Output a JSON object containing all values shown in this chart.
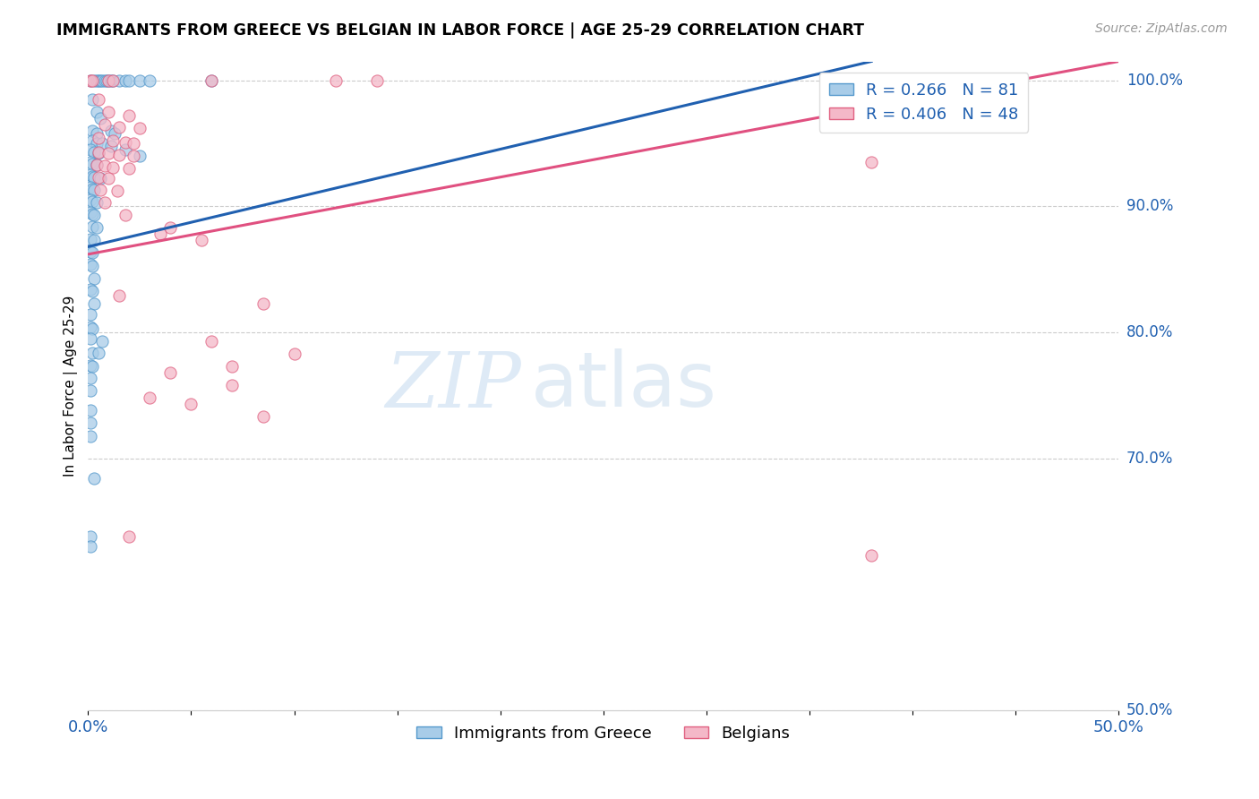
{
  "title": "IMMIGRANTS FROM GREECE VS BELGIAN IN LABOR FORCE | AGE 25-29 CORRELATION CHART",
  "source": "Source: ZipAtlas.com",
  "ylabel": "In Labor Force | Age 25-29",
  "ylabel_right_ticks": [
    "100.0%",
    "90.0%",
    "80.0%",
    "70.0%",
    "50.0%"
  ],
  "ylabel_right_vals": [
    1.0,
    0.9,
    0.8,
    0.7,
    0.5
  ],
  "xmin": 0.0,
  "xmax": 0.5,
  "ymin": 0.5,
  "ymax": 1.015,
  "legend_blue": "R = 0.266   N = 81",
  "legend_pink": "R = 0.406   N = 48",
  "legend_label_blue": "Immigrants from Greece",
  "legend_label_pink": "Belgians",
  "blue_color": "#a8cce8",
  "pink_color": "#f4b8c8",
  "blue_edge_color": "#5599cc",
  "pink_edge_color": "#e06080",
  "blue_line_color": "#2060b0",
  "pink_line_color": "#e05080",
  "watermark_zip": "ZIP",
  "watermark_atlas": "atlas",
  "blue_line": [
    [
      0.0,
      0.868
    ],
    [
      0.38,
      1.015
    ]
  ],
  "pink_line": [
    [
      0.0,
      0.862
    ],
    [
      0.5,
      1.015
    ]
  ],
  "blue_scatter": [
    [
      0.001,
      1.0
    ],
    [
      0.003,
      1.0
    ],
    [
      0.004,
      1.0
    ],
    [
      0.005,
      1.0
    ],
    [
      0.006,
      1.0
    ],
    [
      0.007,
      1.0
    ],
    [
      0.008,
      1.0
    ],
    [
      0.009,
      1.0
    ],
    [
      0.01,
      1.0
    ],
    [
      0.011,
      1.0
    ],
    [
      0.012,
      1.0
    ],
    [
      0.015,
      1.0
    ],
    [
      0.018,
      1.0
    ],
    [
      0.02,
      1.0
    ],
    [
      0.025,
      1.0
    ],
    [
      0.03,
      1.0
    ],
    [
      0.06,
      1.0
    ],
    [
      0.002,
      0.985
    ],
    [
      0.004,
      0.975
    ],
    [
      0.006,
      0.97
    ],
    [
      0.002,
      0.96
    ],
    [
      0.004,
      0.958
    ],
    [
      0.002,
      0.952
    ],
    [
      0.004,
      0.95
    ],
    [
      0.007,
      0.95
    ],
    [
      0.011,
      0.948
    ],
    [
      0.018,
      0.945
    ],
    [
      0.025,
      0.94
    ],
    [
      0.001,
      0.945
    ],
    [
      0.003,
      0.943
    ],
    [
      0.005,
      0.942
    ],
    [
      0.001,
      0.935
    ],
    [
      0.002,
      0.934
    ],
    [
      0.004,
      0.933
    ],
    [
      0.001,
      0.925
    ],
    [
      0.002,
      0.924
    ],
    [
      0.003,
      0.923
    ],
    [
      0.006,
      0.922
    ],
    [
      0.001,
      0.915
    ],
    [
      0.002,
      0.914
    ],
    [
      0.003,
      0.913
    ],
    [
      0.001,
      0.905
    ],
    [
      0.002,
      0.904
    ],
    [
      0.004,
      0.903
    ],
    [
      0.001,
      0.895
    ],
    [
      0.002,
      0.894
    ],
    [
      0.003,
      0.893
    ],
    [
      0.002,
      0.884
    ],
    [
      0.004,
      0.883
    ],
    [
      0.001,
      0.874
    ],
    [
      0.003,
      0.873
    ],
    [
      0.001,
      0.864
    ],
    [
      0.002,
      0.863
    ],
    [
      0.001,
      0.854
    ],
    [
      0.002,
      0.853
    ],
    [
      0.003,
      0.843
    ],
    [
      0.001,
      0.834
    ],
    [
      0.002,
      0.833
    ],
    [
      0.003,
      0.823
    ],
    [
      0.001,
      0.814
    ],
    [
      0.001,
      0.804
    ],
    [
      0.002,
      0.803
    ],
    [
      0.001,
      0.795
    ],
    [
      0.002,
      0.784
    ],
    [
      0.001,
      0.774
    ],
    [
      0.002,
      0.773
    ],
    [
      0.001,
      0.764
    ],
    [
      0.001,
      0.754
    ],
    [
      0.005,
      0.784
    ],
    [
      0.007,
      0.793
    ],
    [
      0.001,
      0.738
    ],
    [
      0.001,
      0.728
    ],
    [
      0.001,
      0.718
    ],
    [
      0.003,
      0.684
    ],
    [
      0.001,
      0.638
    ],
    [
      0.001,
      0.63
    ],
    [
      0.011,
      0.96
    ],
    [
      0.013,
      0.958
    ]
  ],
  "pink_scatter": [
    [
      0.001,
      1.0
    ],
    [
      0.002,
      1.0
    ],
    [
      0.01,
      1.0
    ],
    [
      0.012,
      1.0
    ],
    [
      0.06,
      1.0
    ],
    [
      0.12,
      1.0
    ],
    [
      0.14,
      1.0
    ],
    [
      0.005,
      0.985
    ],
    [
      0.01,
      0.975
    ],
    [
      0.02,
      0.972
    ],
    [
      0.008,
      0.965
    ],
    [
      0.015,
      0.963
    ],
    [
      0.025,
      0.962
    ],
    [
      0.005,
      0.954
    ],
    [
      0.012,
      0.952
    ],
    [
      0.018,
      0.951
    ],
    [
      0.022,
      0.95
    ],
    [
      0.005,
      0.943
    ],
    [
      0.01,
      0.942
    ],
    [
      0.015,
      0.941
    ],
    [
      0.022,
      0.94
    ],
    [
      0.004,
      0.933
    ],
    [
      0.008,
      0.932
    ],
    [
      0.012,
      0.931
    ],
    [
      0.02,
      0.93
    ],
    [
      0.005,
      0.923
    ],
    [
      0.01,
      0.922
    ],
    [
      0.006,
      0.913
    ],
    [
      0.014,
      0.912
    ],
    [
      0.008,
      0.903
    ],
    [
      0.018,
      0.893
    ],
    [
      0.04,
      0.883
    ],
    [
      0.035,
      0.878
    ],
    [
      0.055,
      0.873
    ],
    [
      0.015,
      0.829
    ],
    [
      0.085,
      0.823
    ],
    [
      0.06,
      0.793
    ],
    [
      0.1,
      0.783
    ],
    [
      0.07,
      0.773
    ],
    [
      0.04,
      0.768
    ],
    [
      0.07,
      0.758
    ],
    [
      0.03,
      0.748
    ],
    [
      0.05,
      0.743
    ],
    [
      0.085,
      0.733
    ],
    [
      0.02,
      0.638
    ],
    [
      0.38,
      0.935
    ],
    [
      0.38,
      0.623
    ]
  ]
}
